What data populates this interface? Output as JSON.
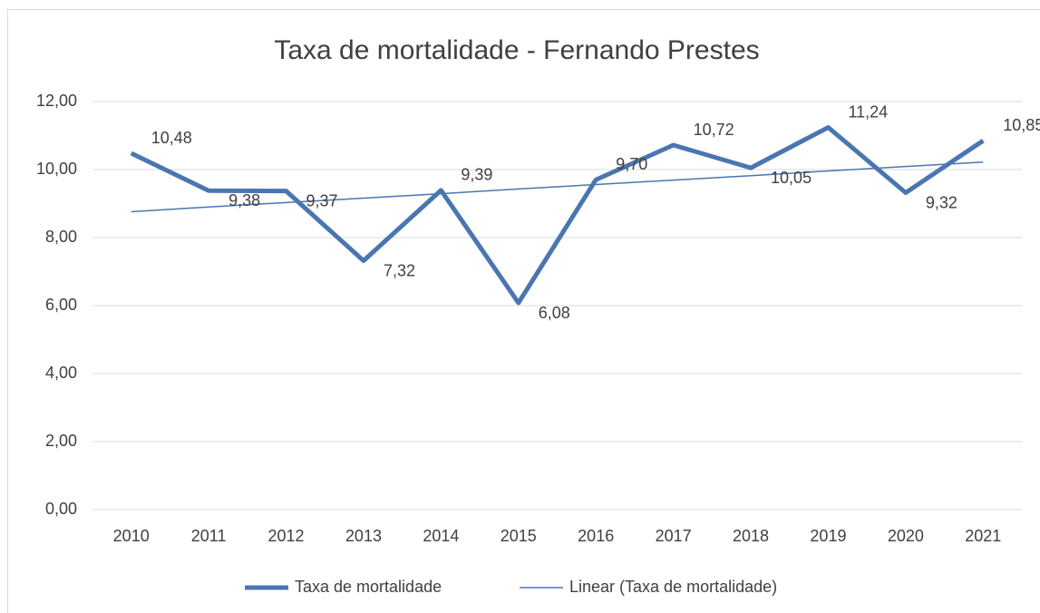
{
  "chart_data": {
    "type": "line",
    "title": "Taxa de mortalidade - Fernando Prestes",
    "categories": [
      "2010",
      "2011",
      "2012",
      "2013",
      "2014",
      "2015",
      "2016",
      "2017",
      "2018",
      "2019",
      "2020",
      "2021"
    ],
    "series": [
      {
        "name": "Taxa de mortalidade",
        "color": "#4a76b0",
        "values": [
          10.48,
          9.38,
          9.37,
          7.32,
          9.39,
          6.08,
          9.7,
          10.72,
          10.05,
          11.24,
          9.32,
          10.85
        ],
        "value_labels": [
          "10,48",
          "9,38",
          "9,37",
          "7,32",
          "9,39",
          "6,08",
          "9,70",
          "10,72",
          "10,05",
          "11,24",
          "9,32",
          "10,85"
        ]
      },
      {
        "name": "Linear (Taxa de mortalidade)",
        "color": "#4a76b0",
        "values": [
          8.76,
          8.9,
          9.03,
          9.16,
          9.29,
          9.43,
          9.56,
          9.69,
          9.82,
          9.96,
          10.09,
          10.22
        ]
      }
    ],
    "ylim": [
      0,
      12
    ],
    "yticks": [
      {
        "value": 0,
        "label": "0,00"
      },
      {
        "value": 2,
        "label": "2,00"
      },
      {
        "value": 4,
        "label": "4,00"
      },
      {
        "value": 6,
        "label": "6,00"
      },
      {
        "value": 8,
        "label": "8,00"
      },
      {
        "value": 10,
        "label": "10,00"
      },
      {
        "value": 12,
        "label": "12,00"
      }
    ],
    "grid": true,
    "legend": "bottom"
  }
}
